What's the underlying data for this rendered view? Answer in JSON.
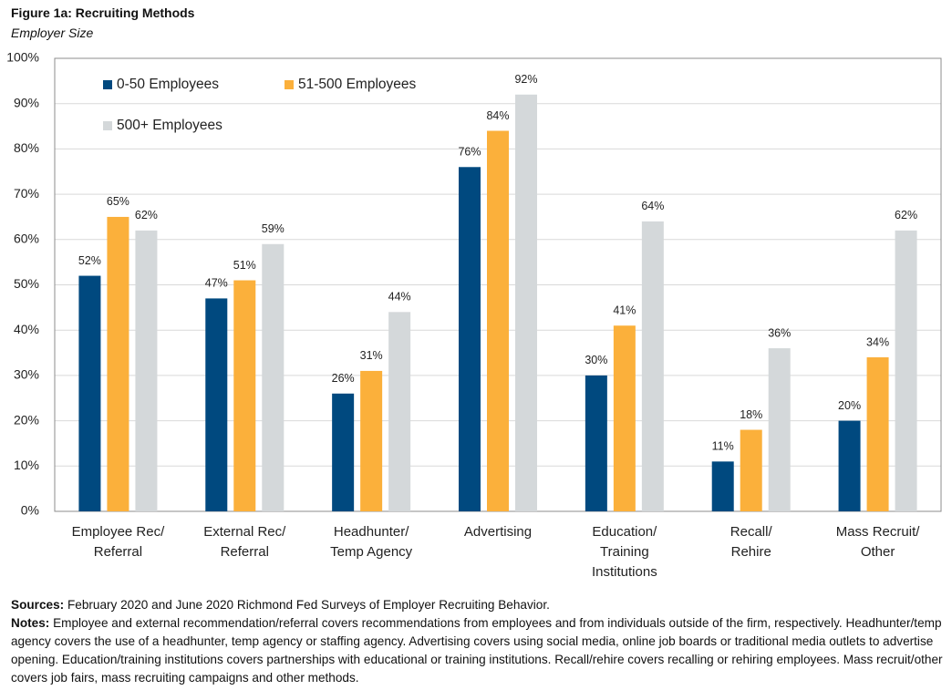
{
  "chart_data": {
    "type": "bar",
    "title": "Figure 1a: Recruiting Methods",
    "subtitle": "Employer Size",
    "categories": [
      "Employee Rec/\nReferral",
      "External Rec/\nReferral",
      "Headhunter/\nTemp Agency",
      "Advertising",
      "Education/\nTraining\nInstitutions",
      "Recall/\nRehire",
      "Mass Recruit/\nOther"
    ],
    "series": [
      {
        "name": "0-50 Employees",
        "color": "#00497f",
        "values": [
          52,
          47,
          26,
          76,
          30,
          11,
          20
        ],
        "value_labels": [
          "52%",
          "47%",
          "26%",
          "76%",
          "30%",
          "11%",
          "20%"
        ]
      },
      {
        "name": "51-500 Employees",
        "color": "#fbb03b",
        "values": [
          65,
          51,
          31,
          84,
          41,
          18,
          34
        ],
        "value_labels": [
          "65%",
          "51%",
          "31%",
          "84%",
          "41%",
          "18%",
          "34%"
        ]
      },
      {
        "name": "500+ Employees",
        "color": "#d4d8da",
        "values": [
          62,
          59,
          44,
          92,
          64,
          36,
          62
        ],
        "value_labels": [
          "62%",
          "59%",
          "44%",
          "92%",
          "64%",
          "36%",
          "62%"
        ]
      }
    ],
    "ylim": [
      0,
      100
    ],
    "yticks": [
      {
        "value": 0,
        "label": "0%"
      },
      {
        "value": 10,
        "label": "10%"
      },
      {
        "value": 20,
        "label": "20%"
      },
      {
        "value": 30,
        "label": "30%"
      },
      {
        "value": 40,
        "label": "40%"
      },
      {
        "value": 50,
        "label": "50%"
      },
      {
        "value": 60,
        "label": "60%"
      },
      {
        "value": 70,
        "label": "70%"
      },
      {
        "value": 80,
        "label": "80%"
      },
      {
        "value": 90,
        "label": "90%"
      },
      {
        "value": 100,
        "label": "100%"
      }
    ],
    "grid": true,
    "legend": "top-left",
    "sources_label": "Sources:",
    "sources": "February 2020 and June 2020 Richmond Fed Surveys of Employer Recruiting Behavior.",
    "notes_label": "Notes:",
    "notes": "Employee and external recommendation/referral covers recommendations from employees and from individuals outside of the firm, respectively. Headhunter/temp agency covers the use of a headhunter, temp agency or staffing agency. Advertising covers using social media, online job boards or traditional media outlets to advertise opening. Education/training institutions covers partnerships with educational or training institutions. Recall/rehire covers recalling or rehiring employees. Mass recruit/other covers job fairs, mass recruiting campaigns and other methods."
  }
}
